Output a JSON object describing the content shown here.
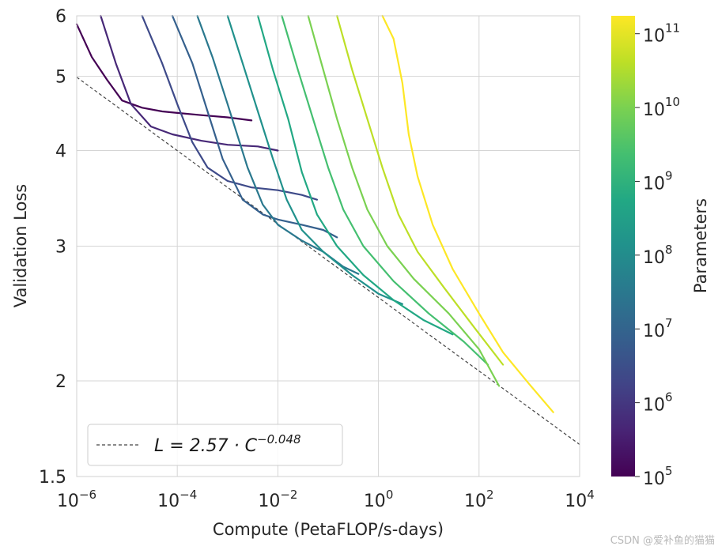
{
  "chart_data": {
    "type": "line",
    "xlabel": "Compute (PetaFLOP/s-days)",
    "ylabel": "Validation Loss",
    "x_scale": "log",
    "y_scale": "log",
    "xlim": [
      1e-06,
      10000.0
    ],
    "ylim": [
      1.5,
      6
    ],
    "x_ticks": [
      {
        "base": "10",
        "exp": "−6",
        "value": 1e-06
      },
      {
        "base": "10",
        "exp": "−4",
        "value": 0.0001
      },
      {
        "base": "10",
        "exp": "−2",
        "value": 0.01
      },
      {
        "base": "10",
        "exp": "0",
        "value": 1
      },
      {
        "base": "10",
        "exp": "2",
        "value": 100
      },
      {
        "base": "10",
        "exp": "4",
        "value": 10000
      }
    ],
    "y_ticks": [
      "1.5",
      "2",
      "3",
      "4",
      "5",
      "6"
    ],
    "grid": true,
    "fit_line": {
      "label_pre": "L = 2.57 · C",
      "label_exp": "−0.048",
      "a": 2.57,
      "b": -0.048,
      "style": "dashed",
      "color": "#444444"
    },
    "legend_placement": "lower-left",
    "colorbar": {
      "label": "Parameters",
      "scale": "log",
      "range": [
        100000.0,
        175000000000.0
      ],
      "ticks": [
        {
          "base": "10",
          "exp": "5"
        },
        {
          "base": "10",
          "exp": "6"
        },
        {
          "base": "10",
          "exp": "7"
        },
        {
          "base": "10",
          "exp": "8"
        },
        {
          "base": "10",
          "exp": "9"
        },
        {
          "base": "10",
          "exp": "10"
        },
        {
          "base": "10",
          "exp": "11"
        }
      ],
      "colormap": "viridis"
    },
    "series": [
      {
        "color": "#440154",
        "points": [
          [
            1e-06,
            5.85
          ],
          [
            2e-06,
            5.3
          ],
          [
            4e-06,
            4.95
          ],
          [
            8e-06,
            4.65
          ],
          [
            2e-05,
            4.55
          ],
          [
            5e-05,
            4.5
          ],
          [
            0.0001,
            4.48
          ],
          [
            0.0003,
            4.45
          ],
          [
            0.001,
            4.42
          ],
          [
            0.003,
            4.38
          ]
        ]
      },
      {
        "color": "#472877",
        "points": [
          [
            3e-06,
            6.0
          ],
          [
            6e-06,
            5.2
          ],
          [
            1.2e-05,
            4.6
          ],
          [
            3e-05,
            4.3
          ],
          [
            8e-05,
            4.2
          ],
          [
            0.0003,
            4.12
          ],
          [
            0.001,
            4.07
          ],
          [
            0.004,
            4.05
          ],
          [
            0.01,
            4.0
          ]
        ]
      },
      {
        "color": "#3e4a89",
        "points": [
          [
            2e-05,
            6.0
          ],
          [
            5e-05,
            5.2
          ],
          [
            0.0001,
            4.6
          ],
          [
            0.0002,
            4.1
          ],
          [
            0.0004,
            3.8
          ],
          [
            0.001,
            3.65
          ],
          [
            0.003,
            3.58
          ],
          [
            0.01,
            3.55
          ],
          [
            0.03,
            3.5
          ],
          [
            0.06,
            3.45
          ]
        ]
      },
      {
        "color": "#35608d",
        "points": [
          [
            8e-05,
            6.0
          ],
          [
            0.0002,
            5.2
          ],
          [
            0.0004,
            4.5
          ],
          [
            0.0008,
            3.9
          ],
          [
            0.002,
            3.45
          ],
          [
            0.005,
            3.3
          ],
          [
            0.01,
            3.25
          ],
          [
            0.03,
            3.2
          ],
          [
            0.08,
            3.15
          ],
          [
            0.15,
            3.08
          ]
        ]
      },
      {
        "color": "#2a788e",
        "points": [
          [
            0.00025,
            6.0
          ],
          [
            0.0005,
            5.3
          ],
          [
            0.001,
            4.6
          ],
          [
            0.0025,
            3.8
          ],
          [
            0.005,
            3.4
          ],
          [
            0.01,
            3.2
          ],
          [
            0.03,
            3.05
          ],
          [
            0.08,
            2.95
          ],
          [
            0.2,
            2.82
          ],
          [
            0.4,
            2.76
          ]
        ]
      },
      {
        "color": "#21918c",
        "points": [
          [
            0.001,
            6.0
          ],
          [
            0.002,
            5.2
          ],
          [
            0.004,
            4.5
          ],
          [
            0.008,
            3.9
          ],
          [
            0.015,
            3.45
          ],
          [
            0.03,
            3.15
          ],
          [
            0.08,
            2.95
          ],
          [
            0.3,
            2.75
          ],
          [
            1,
            2.6
          ],
          [
            3,
            2.52
          ]
        ]
      },
      {
        "color": "#22a884",
        "points": [
          [
            0.004,
            6.0
          ],
          [
            0.008,
            5.1
          ],
          [
            0.016,
            4.4
          ],
          [
            0.03,
            3.75
          ],
          [
            0.06,
            3.3
          ],
          [
            0.15,
            3.0
          ],
          [
            0.5,
            2.75
          ],
          [
            2,
            2.55
          ],
          [
            8,
            2.4
          ],
          [
            30,
            2.3
          ]
        ]
      },
      {
        "color": "#44bf70",
        "points": [
          [
            0.012,
            6.0
          ],
          [
            0.025,
            5.1
          ],
          [
            0.05,
            4.4
          ],
          [
            0.1,
            3.8
          ],
          [
            0.2,
            3.35
          ],
          [
            0.5,
            3.0
          ],
          [
            2,
            2.7
          ],
          [
            10,
            2.45
          ],
          [
            50,
            2.25
          ],
          [
            150,
            2.1
          ]
        ]
      },
      {
        "color": "#7ad151",
        "points": [
          [
            0.04,
            6.0
          ],
          [
            0.08,
            5.1
          ],
          [
            0.15,
            4.4
          ],
          [
            0.3,
            3.8
          ],
          [
            0.6,
            3.35
          ],
          [
            1.5,
            3.0
          ],
          [
            5,
            2.72
          ],
          [
            25,
            2.45
          ],
          [
            100,
            2.2
          ],
          [
            250,
            1.97
          ]
        ]
      },
      {
        "color": "#bddf26",
        "points": [
          [
            0.15,
            6.0
          ],
          [
            0.3,
            5.1
          ],
          [
            0.6,
            4.4
          ],
          [
            1.2,
            3.8
          ],
          [
            2.5,
            3.3
          ],
          [
            6,
            2.95
          ],
          [
            20,
            2.65
          ],
          [
            80,
            2.35
          ],
          [
            300,
            2.1
          ]
        ]
      },
      {
        "color": "#fde725",
        "points": [
          [
            1.2,
            6.0
          ],
          [
            2,
            5.6
          ],
          [
            3,
            4.9
          ],
          [
            4,
            4.2
          ],
          [
            6,
            3.7
          ],
          [
            12,
            3.2
          ],
          [
            30,
            2.8
          ],
          [
            100,
            2.45
          ],
          [
            300,
            2.18
          ],
          [
            1000,
            1.98
          ],
          [
            3000,
            1.82
          ]
        ]
      }
    ]
  },
  "watermark": "CSDN @爱补鱼的猫猫"
}
